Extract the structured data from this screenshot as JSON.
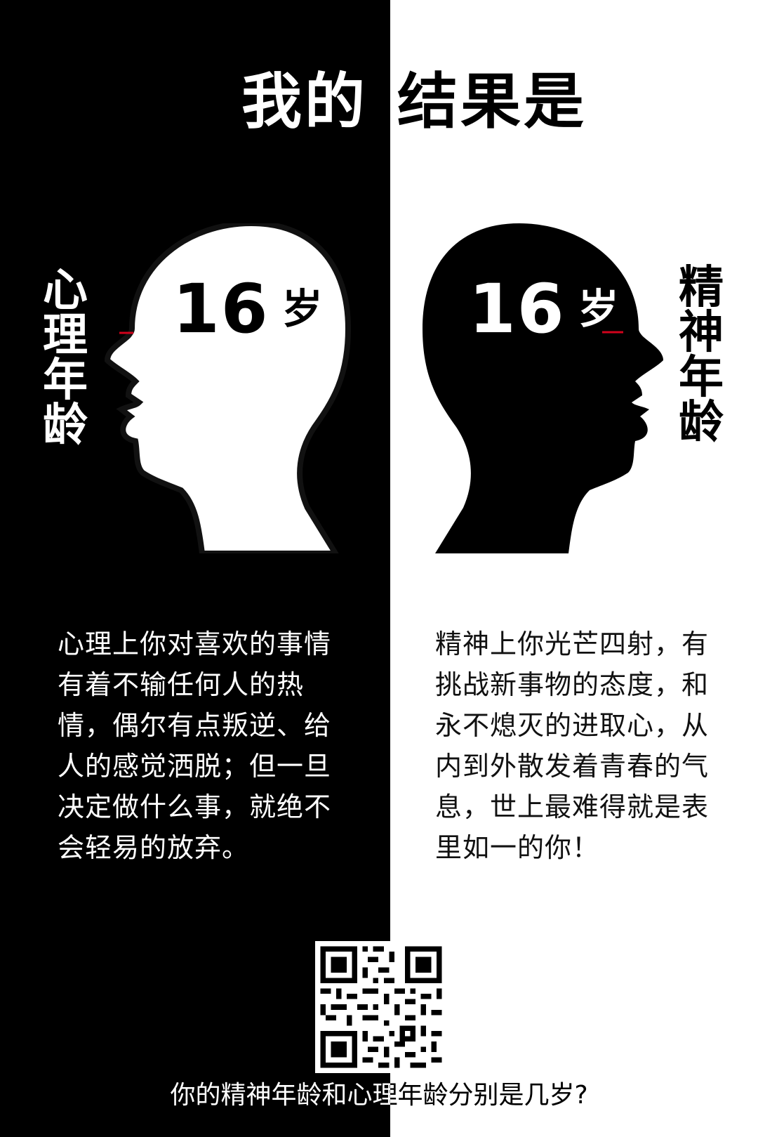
{
  "title": {
    "left": "我的",
    "right": "结果是"
  },
  "left": {
    "vertical_label": "心理年龄",
    "age_number": "16",
    "age_unit": "岁",
    "description": "心理上你对喜欢的事情有着不输任何人的热情，偶尔有点叛逆、给人的感觉洒脱；但一旦决定做什么事，就绝不会轻易的放弃。"
  },
  "right": {
    "vertical_label": "精神年龄",
    "age_number": "16",
    "age_unit": "岁",
    "description": "精神上你光芒四射，有挑战新事物的态度，和永不熄灭的进取心，从内到外散发着青春的气息，世上最难得就是表里如一的你！"
  },
  "footer": {
    "question": "你的精神年龄和心理年龄分别是几岁?"
  },
  "colors": {
    "left_background": "#000000",
    "right_background": "#ffffff",
    "accent_line": "#d0021b"
  },
  "icons": {
    "left_head": "head-silhouette-icon",
    "right_head": "head-silhouette-icon",
    "qr": "qr-code-icon"
  }
}
